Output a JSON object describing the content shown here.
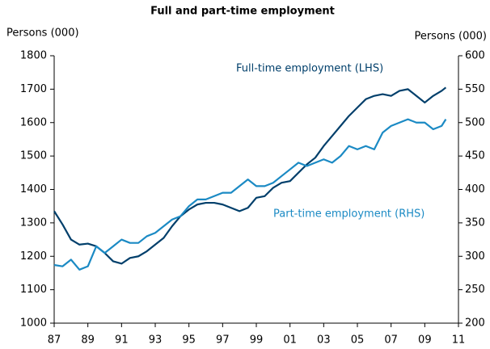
{
  "chart_data": {
    "type": "line",
    "title": "Full and part-time employment",
    "ylabel": "Persons (000)",
    "y2label": "Persons (000)",
    "x": [
      1987.0,
      1987.5,
      1988.0,
      1988.5,
      1989.0,
      1989.5,
      1990.0,
      1990.5,
      1991.0,
      1991.5,
      1992.0,
      1992.5,
      1993.0,
      1993.5,
      1994.0,
      1994.5,
      1995.0,
      1995.5,
      1996.0,
      1996.5,
      1997.0,
      1997.5,
      1998.0,
      1998.5,
      1999.0,
      1999.5,
      2000.0,
      2000.5,
      2001.0,
      2001.5,
      2002.0,
      2002.5,
      2003.0,
      2003.5,
      2004.0,
      2004.5,
      2005.0,
      2005.5,
      2006.0,
      2006.5,
      2007.0,
      2007.5,
      2008.0,
      2008.5,
      2009.0,
      2009.5,
      2010.0,
      2010.25
    ],
    "series": [
      {
        "name": "Full-time employment (LHS)",
        "color": "#003f6b",
        "axis": "y",
        "values": [
          1335,
          1295,
          1250,
          1235,
          1238,
          1230,
          1210,
          1185,
          1178,
          1195,
          1200,
          1215,
          1235,
          1255,
          1290,
          1320,
          1340,
          1355,
          1360,
          1360,
          1355,
          1345,
          1335,
          1345,
          1375,
          1380,
          1405,
          1420,
          1425,
          1450,
          1475,
          1495,
          1530,
          1560,
          1590,
          1620,
          1645,
          1670,
          1680,
          1685,
          1680,
          1695,
          1700,
          1680,
          1660,
          1680,
          1695,
          1705
        ]
      },
      {
        "name": "Part-time employment (RHS)",
        "color": "#1b8ac4",
        "axis": "y2",
        "values": [
          287,
          285,
          295,
          280,
          285,
          315,
          305,
          315,
          325,
          320,
          320,
          330,
          335,
          345,
          355,
          360,
          375,
          385,
          385,
          390,
          395,
          395,
          405,
          415,
          405,
          405,
          410,
          420,
          430,
          440,
          435,
          440,
          445,
          440,
          450,
          465,
          460,
          465,
          460,
          485,
          495,
          500,
          505,
          500,
          500,
          490,
          495,
          505
        ]
      }
    ],
    "xlim": [
      1987,
      2011
    ],
    "xticks": [
      {
        "value": 1987,
        "label": "87"
      },
      {
        "value": 1989,
        "label": "89"
      },
      {
        "value": 1991,
        "label": "91"
      },
      {
        "value": 1993,
        "label": "93"
      },
      {
        "value": 1995,
        "label": "95"
      },
      {
        "value": 1997,
        "label": "97"
      },
      {
        "value": 1999,
        "label": "99"
      },
      {
        "value": 2001,
        "label": "01"
      },
      {
        "value": 2003,
        "label": "03"
      },
      {
        "value": 2005,
        "label": "05"
      },
      {
        "value": 2007,
        "label": "07"
      },
      {
        "value": 2009,
        "label": "09"
      },
      {
        "value": 2011,
        "label": "11"
      }
    ],
    "ylim": [
      1000,
      1800
    ],
    "yticks": [
      1000,
      1100,
      1200,
      1300,
      1400,
      1500,
      1600,
      1700,
      1800
    ],
    "y2lim": [
      200,
      600
    ],
    "y2ticks": [
      200,
      250,
      300,
      350,
      400,
      450,
      500,
      550,
      600
    ],
    "grid": false
  }
}
